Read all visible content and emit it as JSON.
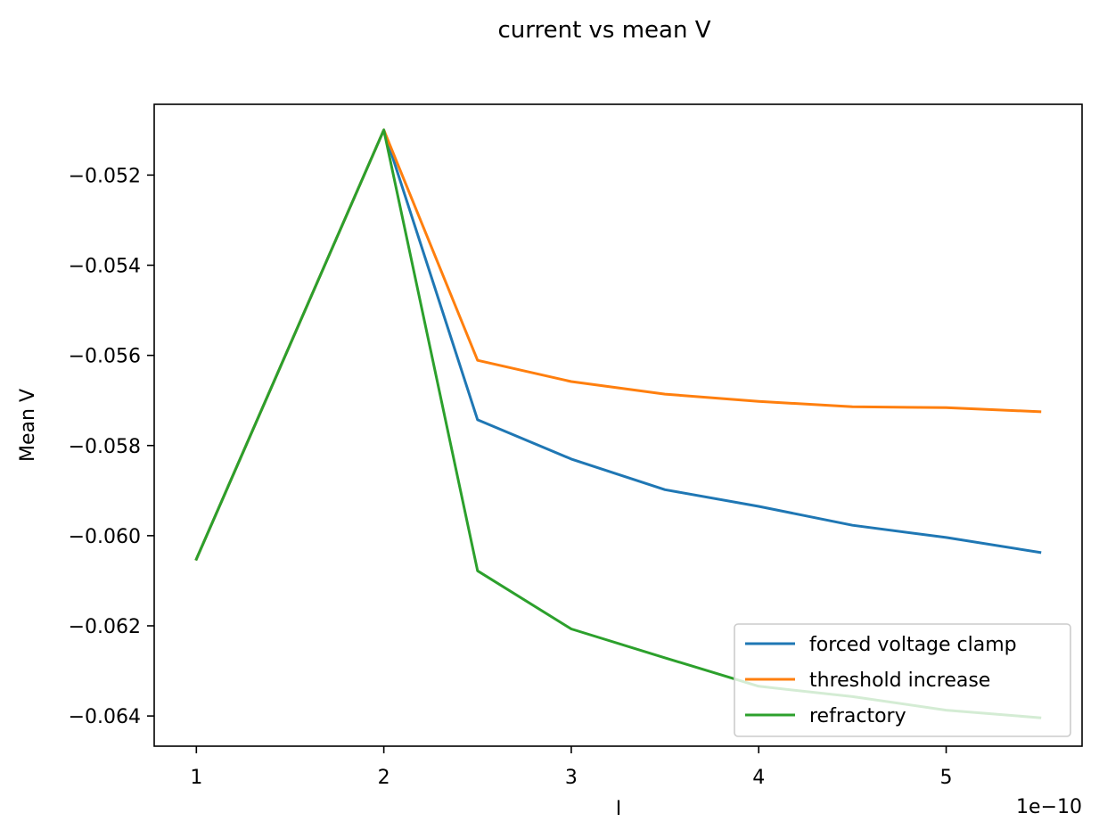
{
  "chart_data": {
    "type": "line",
    "title": "current vs mean V",
    "xlabel": "I",
    "ylabel": "Mean V",
    "x_offset_label": "1e−10",
    "x_scale": 1e-10,
    "x": [
      1,
      2,
      2.5,
      3,
      3.5,
      4,
      4.5,
      5,
      5.5
    ],
    "xlim": [
      0.775,
      5.725
    ],
    "ylim": [
      -0.06467,
      -0.05043
    ],
    "xticks": [
      1,
      2,
      3,
      4,
      5
    ],
    "xtick_labels": [
      "1",
      "2",
      "3",
      "4",
      "5"
    ],
    "yticks": [
      -0.064,
      -0.062,
      -0.06,
      -0.058,
      -0.056,
      -0.054,
      -0.052
    ],
    "ytick_labels": [
      "−0.064",
      "−0.062",
      "−0.060",
      "−0.058",
      "−0.056",
      "−0.054",
      "−0.052"
    ],
    "grid": false,
    "legend_position": "lower right",
    "series": [
      {
        "name": "forced voltage clamp",
        "color": "#1f77b4",
        "values": [
          -0.06052,
          -0.051,
          -0.05743,
          -0.0583,
          -0.05898,
          -0.05935,
          -0.05977,
          -0.06004,
          -0.06037
        ]
      },
      {
        "name": "threshold increase",
        "color": "#ff7f0e",
        "values": [
          -0.06052,
          -0.051,
          -0.05611,
          -0.05658,
          -0.05686,
          -0.05702,
          -0.05714,
          -0.05716,
          -0.05725
        ]
      },
      {
        "name": "refractory",
        "color": "#2ca02c",
        "values": [
          -0.06052,
          -0.051,
          -0.06078,
          -0.06207,
          -0.06271,
          -0.06334,
          -0.06357,
          -0.06387,
          -0.06404
        ]
      }
    ]
  }
}
